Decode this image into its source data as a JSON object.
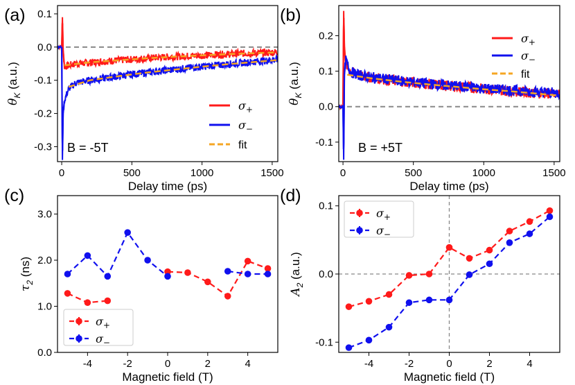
{
  "colors": {
    "sigma_plus": "#ff1a1a",
    "sigma_minus": "#1010ee",
    "fit": "#f5a623",
    "ref": "#888888"
  },
  "chart_data": [
    {
      "type": "line",
      "panel": "(a)",
      "annotation": "B = -5T",
      "xlabel": "Delay time (ps)",
      "ylabel": "θK (a.u.)",
      "xlim": [
        -30,
        1540
      ],
      "ylim": [
        -0.345,
        0.125
      ],
      "xticks": [
        0,
        500,
        1000,
        1500
      ],
      "yticks": [
        0.1,
        0.0,
        -0.1,
        -0.2,
        -0.3
      ],
      "ytick_labels": [
        "0.1",
        "0.0",
        "-0.1",
        "-0.2",
        "-0.3"
      ],
      "legend": [
        "σ+",
        "σ−",
        "fit"
      ],
      "legend_loc": "lower-right",
      "series": [
        {
          "name": "σ+",
          "key": "sigma_plus",
          "x": [
            0,
            5,
            10,
            20,
            50,
            100,
            200,
            300,
            400,
            500,
            600,
            700,
            800,
            900,
            1000,
            1100,
            1200,
            1300,
            1400,
            1500,
            1540
          ],
          "values": [
            0.0,
            0.09,
            -0.01,
            -0.06,
            -0.055,
            -0.05,
            -0.047,
            -0.043,
            -0.04,
            -0.037,
            -0.034,
            -0.031,
            -0.029,
            -0.027,
            -0.025,
            -0.023,
            -0.021,
            -0.019,
            -0.018,
            -0.016,
            -0.015
          ]
        },
        {
          "name": "σ−",
          "key": "sigma_minus",
          "x": [
            0,
            5,
            10,
            20,
            50,
            100,
            200,
            300,
            400,
            500,
            600,
            700,
            800,
            900,
            1000,
            1100,
            1200,
            1300,
            1400,
            1500,
            1540
          ],
          "values": [
            0.0,
            -0.34,
            -0.2,
            -0.16,
            -0.125,
            -0.108,
            -0.1,
            -0.094,
            -0.088,
            -0.082,
            -0.077,
            -0.072,
            -0.068,
            -0.063,
            -0.059,
            -0.055,
            -0.051,
            -0.047,
            -0.043,
            -0.039,
            -0.038
          ]
        },
        {
          "name": "fit σ+",
          "key": "fit",
          "x": [
            20,
            200,
            400,
            600,
            800,
            1000,
            1200,
            1400,
            1540
          ],
          "values": [
            -0.055,
            -0.046,
            -0.04,
            -0.034,
            -0.029,
            -0.025,
            -0.021,
            -0.018,
            -0.016
          ]
        },
        {
          "name": "fit σ−",
          "key": "fit",
          "x": [
            50,
            200,
            400,
            600,
            800,
            1000,
            1200,
            1400,
            1540
          ],
          "values": [
            -0.12,
            -0.1,
            -0.088,
            -0.077,
            -0.068,
            -0.059,
            -0.051,
            -0.044,
            -0.039
          ]
        }
      ]
    },
    {
      "type": "line",
      "panel": "(b)",
      "annotation": "B = +5T",
      "xlabel": "Delay time (ps)",
      "ylabel": "θK (a.u.)",
      "xlim": [
        -30,
        1540
      ],
      "ylim": [
        -0.155,
        0.285
      ],
      "xticks": [
        0,
        500,
        1000,
        1500
      ],
      "yticks": [
        0.2,
        0.1,
        0.0,
        -0.1
      ],
      "ytick_labels": [
        "0.2",
        "0.1",
        "0.0",
        "-0.1"
      ],
      "legend": [
        "σ+",
        "σ−",
        "fit"
      ],
      "legend_loc": "upper-right",
      "series": [
        {
          "name": "σ+",
          "key": "sigma_plus",
          "x": [
            0,
            5,
            10,
            20,
            50,
            100,
            200,
            300,
            400,
            500,
            600,
            700,
            800,
            900,
            1000,
            1100,
            1200,
            1300,
            1400,
            1500,
            1540
          ],
          "values": [
            0.0,
            0.27,
            0.17,
            0.12,
            0.1,
            0.09,
            0.082,
            0.077,
            0.072,
            0.068,
            0.064,
            0.06,
            0.057,
            0.054,
            0.05,
            0.047,
            0.044,
            0.041,
            0.038,
            0.035,
            0.034
          ]
        },
        {
          "name": "σ−",
          "key": "sigma_minus",
          "x": [
            0,
            5,
            10,
            20,
            50,
            100,
            200,
            300,
            400,
            500,
            600,
            700,
            800,
            900,
            1000,
            1100,
            1200,
            1300,
            1400,
            1500,
            1540
          ],
          "values": [
            0.0,
            -0.15,
            0.09,
            0.13,
            0.1,
            0.09,
            0.083,
            0.078,
            0.073,
            0.069,
            0.065,
            0.061,
            0.058,
            0.055,
            0.052,
            0.049,
            0.046,
            0.043,
            0.041,
            0.039,
            0.038
          ]
        },
        {
          "name": "fit",
          "key": "fit",
          "x": [
            30,
            200,
            400,
            600,
            800,
            1000,
            1200,
            1400,
            1540
          ],
          "values": [
            0.09,
            0.08,
            0.071,
            0.063,
            0.056,
            0.049,
            0.043,
            0.036,
            0.031
          ]
        }
      ]
    },
    {
      "type": "line",
      "panel": "(c)",
      "xlabel": "Magnetic field (T)",
      "ylabel": "τ2 (ns)",
      "xlim": [
        -5.5,
        5.5
      ],
      "ylim": [
        0.0,
        3.4
      ],
      "xticks": [
        -4,
        -2,
        0,
        2,
        4
      ],
      "yticks": [
        0.0,
        1.0,
        2.0,
        3.0
      ],
      "ytick_labels": [
        "0.0",
        "1.0",
        "2.0",
        "3.0"
      ],
      "legend": [
        "σ+",
        "σ−"
      ],
      "legend_loc": "lower-left",
      "series": [
        {
          "name": "σ+",
          "key": "sigma_plus",
          "segments": [
            {
              "x": [
                -5,
                -4,
                -3
              ],
              "values": [
                1.28,
                1.08,
                1.12
              ]
            },
            {
              "x": [
                0,
                1,
                2,
                3,
                4,
                5
              ],
              "values": [
                1.75,
                1.73,
                1.53,
                1.22,
                1.98,
                1.82
              ]
            }
          ]
        },
        {
          "name": "σ−",
          "key": "sigma_minus",
          "segments": [
            {
              "x": [
                -5,
                -4,
                -3,
                -2,
                -1,
                0
              ],
              "values": [
                1.7,
                2.1,
                1.65,
                2.6,
                2.0,
                1.65
              ]
            },
            {
              "x": [
                3,
                4,
                5
              ],
              "values": [
                1.76,
                1.7,
                1.7
              ]
            }
          ]
        }
      ]
    },
    {
      "type": "line",
      "panel": "(d)",
      "xlabel": "Magnetic field (T)",
      "ylabel": "A2 (a.u.)",
      "xlim": [
        -5.5,
        5.5
      ],
      "ylim": [
        -0.115,
        0.115
      ],
      "xticks": [
        -4,
        -2,
        0,
        2,
        4
      ],
      "yticks": [
        0.1,
        0.0,
        -0.1
      ],
      "ytick_labels": [
        "0.1",
        "0.0",
        "-0.1"
      ],
      "legend": [
        "σ+",
        "σ−"
      ],
      "legend_loc": "upper-left",
      "series": [
        {
          "name": "σ+",
          "key": "sigma_plus",
          "segments": [
            {
              "x": [
                -5,
                -4,
                -3,
                -2,
                -1,
                0,
                1,
                2,
                3,
                4,
                5
              ],
              "values": [
                -0.048,
                -0.04,
                -0.03,
                -0.002,
                0.0,
                0.039,
                0.023,
                0.035,
                0.063,
                0.077,
                0.093
              ]
            }
          ]
        },
        {
          "name": "σ−",
          "key": "sigma_minus",
          "segments": [
            {
              "x": [
                -5,
                -4,
                -3,
                -2,
                -1,
                0,
                1,
                2,
                3,
                4,
                5
              ],
              "values": [
                -0.108,
                -0.097,
                -0.078,
                -0.042,
                -0.038,
                -0.038,
                -0.001,
                0.015,
                0.046,
                0.059,
                0.084
              ]
            }
          ]
        }
      ]
    }
  ]
}
